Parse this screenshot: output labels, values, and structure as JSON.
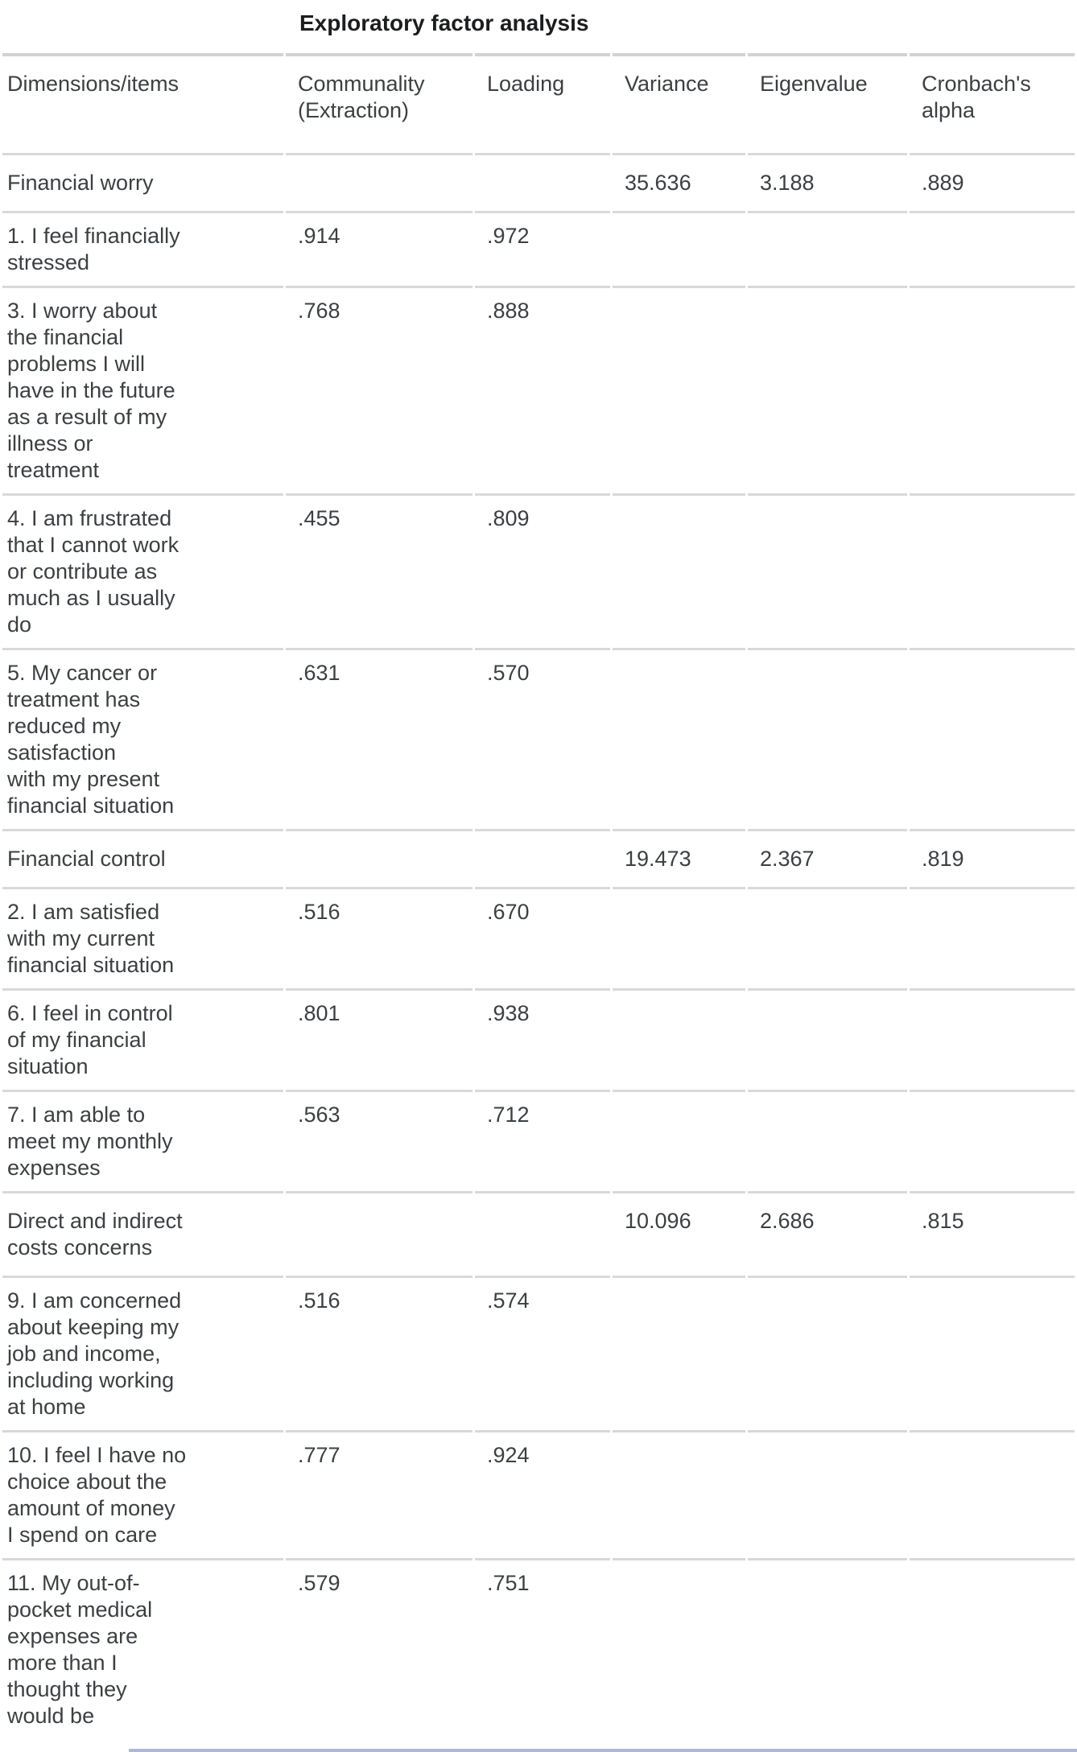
{
  "title": "Exploratory factor analysis",
  "colors": {
    "bottom_line": "#aeb8d6",
    "row_border": "#d9d9d9",
    "text": "#3c4043"
  },
  "table": {
    "columns": [
      "Dimensions/items",
      "Communality (Extraction)",
      "Loading",
      "Variance",
      "Eigenvalue",
      "Cronbach's alpha"
    ],
    "rows": [
      {
        "is_dimension": true,
        "label": "Financial worry",
        "communality": "",
        "loading": "",
        "variance": "35.636",
        "eigenvalue": "3.188",
        "cronbachs_alpha": ".889"
      },
      {
        "is_dimension": false,
        "label": "1. I feel financially\nstressed",
        "communality": ".914",
        "loading": ".972",
        "variance": "",
        "eigenvalue": "",
        "cronbachs_alpha": ""
      },
      {
        "is_dimension": false,
        "label": "3. I worry about\nthe financial\nproblems I will\nhave in the future\nas a result of my\nillness or\ntreatment",
        "communality": ".768",
        "loading": ".888",
        "variance": "",
        "eigenvalue": "",
        "cronbachs_alpha": ""
      },
      {
        "is_dimension": false,
        "label": "4. I am frustrated\nthat I cannot work\nor contribute as\nmuch as I usually\ndo",
        "communality": ".455",
        "loading": ".809",
        "variance": "",
        "eigenvalue": "",
        "cronbachs_alpha": ""
      },
      {
        "is_dimension": false,
        "label": "5. My cancer or\ntreatment has\nreduced my\nsatisfaction\nwith my present\nfinancial situation",
        "communality": ".631",
        "loading": ".570",
        "variance": "",
        "eigenvalue": "",
        "cronbachs_alpha": ""
      },
      {
        "is_dimension": true,
        "label": "Financial control",
        "communality": "",
        "loading": "",
        "variance": "19.473",
        "eigenvalue": "2.367",
        "cronbachs_alpha": ".819"
      },
      {
        "is_dimension": false,
        "label": "2. I am satisfied\nwith my current\nfinancial situation",
        "communality": ".516",
        "loading": ".670",
        "variance": "",
        "eigenvalue": "",
        "cronbachs_alpha": ""
      },
      {
        "is_dimension": false,
        "label": "6. I feel in control\nof my financial\nsituation",
        "communality": ".801",
        "loading": ".938",
        "variance": "",
        "eigenvalue": "",
        "cronbachs_alpha": ""
      },
      {
        "is_dimension": false,
        "label": "7. I am able to\nmeet my monthly\nexpenses",
        "communality": ".563",
        "loading": ".712",
        "variance": "",
        "eigenvalue": "",
        "cronbachs_alpha": ""
      },
      {
        "is_dimension": true,
        "label": "Direct and indirect\ncosts concerns",
        "communality": "",
        "loading": "",
        "variance": "10.096",
        "eigenvalue": "2.686",
        "cronbachs_alpha": ".815"
      },
      {
        "is_dimension": false,
        "label": "9. I am concerned\nabout keeping my\njob and income,\nincluding working\nat home",
        "communality": ".516",
        "loading": ".574",
        "variance": "",
        "eigenvalue": "",
        "cronbachs_alpha": ""
      },
      {
        "is_dimension": false,
        "label": "10. I feel I have no\nchoice about the\namount of money\nI spend on care",
        "communality": ".777",
        "loading": ".924",
        "variance": "",
        "eigenvalue": "",
        "cronbachs_alpha": ""
      },
      {
        "is_dimension": false,
        "label": "11. My out-of-\npocket medical\nexpenses are\nmore than I\nthought they\nwould be",
        "communality": ".579",
        "loading": ".751",
        "variance": "",
        "eigenvalue": "",
        "cronbachs_alpha": ""
      }
    ]
  }
}
